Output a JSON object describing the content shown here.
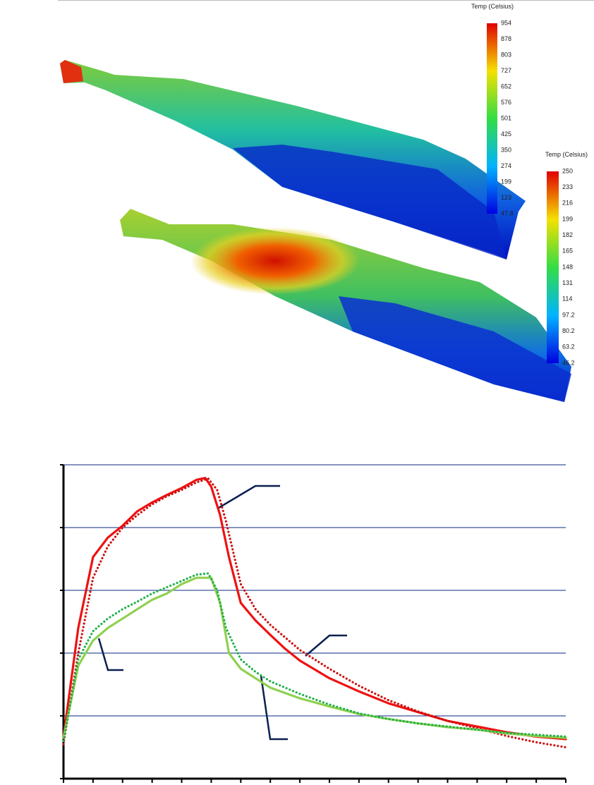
{
  "colorbars": [
    {
      "title": "Temp (Celsius)",
      "labels": [
        954,
        878,
        803,
        727,
        652,
        576,
        501,
        425,
        350,
        274,
        199,
        123,
        47.8
      ]
    },
    {
      "title": "Temp (Celsius)",
      "labels": [
        250,
        233,
        216,
        199,
        182,
        165,
        148,
        131,
        114,
        97.2,
        80.2,
        63.2,
        46.2
      ]
    }
  ],
  "chart_data": {
    "type": "line",
    "xlim": [
      0,
      17
    ],
    "ylim": [
      0,
      5
    ],
    "xticks": [
      0,
      1,
      2,
      3,
      4,
      5,
      6,
      7,
      8,
      9,
      10,
      11,
      12,
      13,
      14,
      15,
      16,
      17
    ],
    "yticks": [
      0,
      1,
      2,
      3,
      4,
      5
    ],
    "grid": true,
    "series": [
      {
        "color": "#ee1111",
        "style": "solid",
        "x": [
          0,
          0.5,
          1,
          1.5,
          2,
          2.5,
          3,
          3.5,
          4,
          4.5,
          4.8,
          5,
          5.3,
          5.6,
          6,
          6.5,
          7,
          7.5,
          8,
          9,
          10,
          11,
          12,
          13,
          14,
          15,
          16,
          17
        ],
        "values": [
          0.66,
          2.4,
          3.53,
          3.84,
          4.03,
          4.26,
          4.4,
          4.52,
          4.63,
          4.76,
          4.79,
          4.65,
          4.2,
          3.53,
          2.8,
          2.52,
          2.29,
          2.07,
          1.88,
          1.6,
          1.39,
          1.2,
          1.06,
          0.92,
          0.83,
          0.74,
          0.67,
          0.63
        ]
      },
      {
        "color": "#cc1111",
        "style": "dotted",
        "x": [
          0,
          0.5,
          1,
          1.5,
          2,
          2.5,
          3,
          3.5,
          4,
          4.5,
          4.9,
          5.2,
          5.5,
          6,
          6.5,
          7,
          8,
          9,
          10,
          11,
          12,
          13,
          14,
          15,
          16,
          17
        ],
        "values": [
          0.55,
          2.0,
          3.2,
          3.7,
          4.0,
          4.2,
          4.37,
          4.5,
          4.6,
          4.72,
          4.78,
          4.6,
          4.1,
          3.1,
          2.7,
          2.45,
          2.05,
          1.75,
          1.48,
          1.25,
          1.07,
          0.92,
          0.8,
          0.68,
          0.58,
          0.5
        ]
      },
      {
        "color": "#8fd14f",
        "style": "solid",
        "x": [
          0,
          0.5,
          1,
          1.5,
          2,
          2.5,
          3,
          3.5,
          4,
          4.5,
          5,
          5.3,
          5.6,
          6,
          6.5,
          7,
          8,
          9,
          10,
          11,
          12,
          13,
          14,
          15,
          16,
          17
        ],
        "values": [
          0.65,
          1.8,
          2.2,
          2.4,
          2.55,
          2.7,
          2.85,
          2.95,
          3.1,
          3.2,
          3.2,
          2.8,
          2.0,
          1.75,
          1.6,
          1.45,
          1.28,
          1.15,
          1.03,
          0.95,
          0.88,
          0.82,
          0.78,
          0.72,
          0.68,
          0.65
        ]
      },
      {
        "color": "#22b14c",
        "style": "dotted",
        "x": [
          0,
          0.5,
          1,
          1.5,
          2,
          2.5,
          3,
          3.5,
          4,
          4.5,
          4.9,
          5.2,
          5.5,
          6,
          6.5,
          7,
          8,
          9,
          10,
          11,
          12,
          13,
          14,
          15,
          16,
          17
        ],
        "values": [
          0.6,
          1.9,
          2.35,
          2.55,
          2.7,
          2.82,
          2.95,
          3.05,
          3.15,
          3.25,
          3.27,
          3.0,
          2.4,
          1.9,
          1.7,
          1.55,
          1.35,
          1.18,
          1.04,
          0.95,
          0.88,
          0.83,
          0.78,
          0.73,
          0.7,
          0.67
        ]
      }
    ]
  }
}
